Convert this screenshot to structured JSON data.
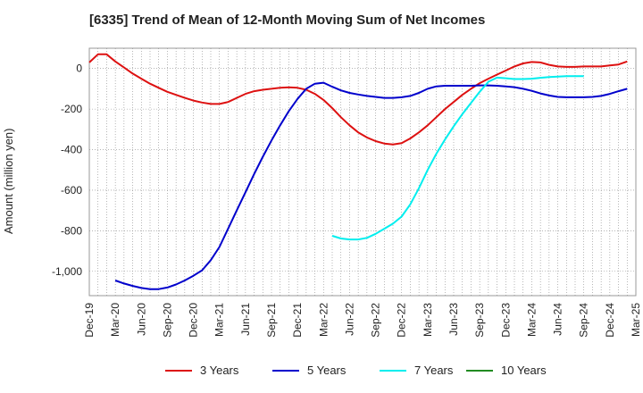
{
  "chart_data": {
    "type": "line",
    "title": "[6335]  Trend of Mean of 12-Month Moving Sum of Net Incomes",
    "xlabel": "",
    "ylabel": "Amount (million yen)",
    "ylim": [
      -1120,
      100
    ],
    "yticks": [
      0,
      -200,
      -400,
      -600,
      -800,
      -1000
    ],
    "ytick_labels": [
      "0",
      "-200",
      "-400",
      "-600",
      "-800",
      "-1,000"
    ],
    "x_ticks": [
      "Dec-19",
      "Mar-20",
      "Jun-20",
      "Sep-20",
      "Dec-20",
      "Mar-21",
      "Jun-21",
      "Sep-21",
      "Dec-21",
      "Mar-22",
      "Jun-22",
      "Sep-22",
      "Dec-22",
      "Mar-23",
      "Jun-23",
      "Sep-23",
      "Dec-23",
      "Mar-24",
      "Jun-24",
      "Sep-24",
      "Dec-24",
      "Mar-25"
    ],
    "grid": true,
    "legend_position": "bottom",
    "series": [
      {
        "name": "3 Years",
        "color": "#dd1111",
        "values": [
          30,
          70,
          70,
          35,
          5,
          -25,
          -50,
          -75,
          -95,
          -115,
          -130,
          -145,
          -158,
          -168,
          -175,
          -175,
          -165,
          -145,
          -125,
          -112,
          -105,
          -100,
          -95,
          -93,
          -95,
          -105,
          -125,
          -155,
          -195,
          -240,
          -280,
          -315,
          -340,
          -358,
          -370,
          -375,
          -368,
          -345,
          -315,
          -280,
          -240,
          -200,
          -165,
          -130,
          -100,
          -72,
          -50,
          -30,
          -10,
          10,
          25,
          32,
          30,
          18,
          10,
          8,
          8,
          10,
          10,
          10,
          15,
          20,
          35
        ]
      },
      {
        "name": "5 Years",
        "color": "#0000cc",
        "values": [
          null,
          null,
          null,
          -1045,
          -1060,
          -1072,
          -1082,
          -1088,
          -1088,
          -1080,
          -1065,
          -1045,
          -1022,
          -995,
          -945,
          -880,
          -790,
          -700,
          -610,
          -520,
          -435,
          -355,
          -280,
          -210,
          -150,
          -100,
          -75,
          -70,
          -90,
          -108,
          -120,
          -128,
          -135,
          -140,
          -145,
          -145,
          -142,
          -135,
          -120,
          -100,
          -88,
          -85,
          -85,
          -85,
          -85,
          -83,
          -83,
          -85,
          -88,
          -92,
          -100,
          -110,
          -123,
          -133,
          -140,
          -142,
          -142,
          -142,
          -140,
          -135,
          -125,
          -112,
          -100
        ]
      },
      {
        "name": "7 Years",
        "color": "#00eeee",
        "values": [
          null,
          null,
          null,
          null,
          null,
          null,
          null,
          null,
          null,
          null,
          null,
          null,
          null,
          null,
          null,
          null,
          null,
          null,
          null,
          null,
          null,
          null,
          null,
          null,
          null,
          null,
          null,
          null,
          -825,
          -838,
          -843,
          -843,
          -835,
          -815,
          -790,
          -765,
          -730,
          -670,
          -590,
          -500,
          -420,
          -350,
          -285,
          -225,
          -170,
          -115,
          -65,
          -45,
          -48,
          -52,
          -52,
          -50,
          -46,
          -42,
          -40,
          -38,
          -38,
          -38
        ]
      },
      {
        "name": "10 Years",
        "color": "#228b22",
        "values": []
      }
    ]
  }
}
